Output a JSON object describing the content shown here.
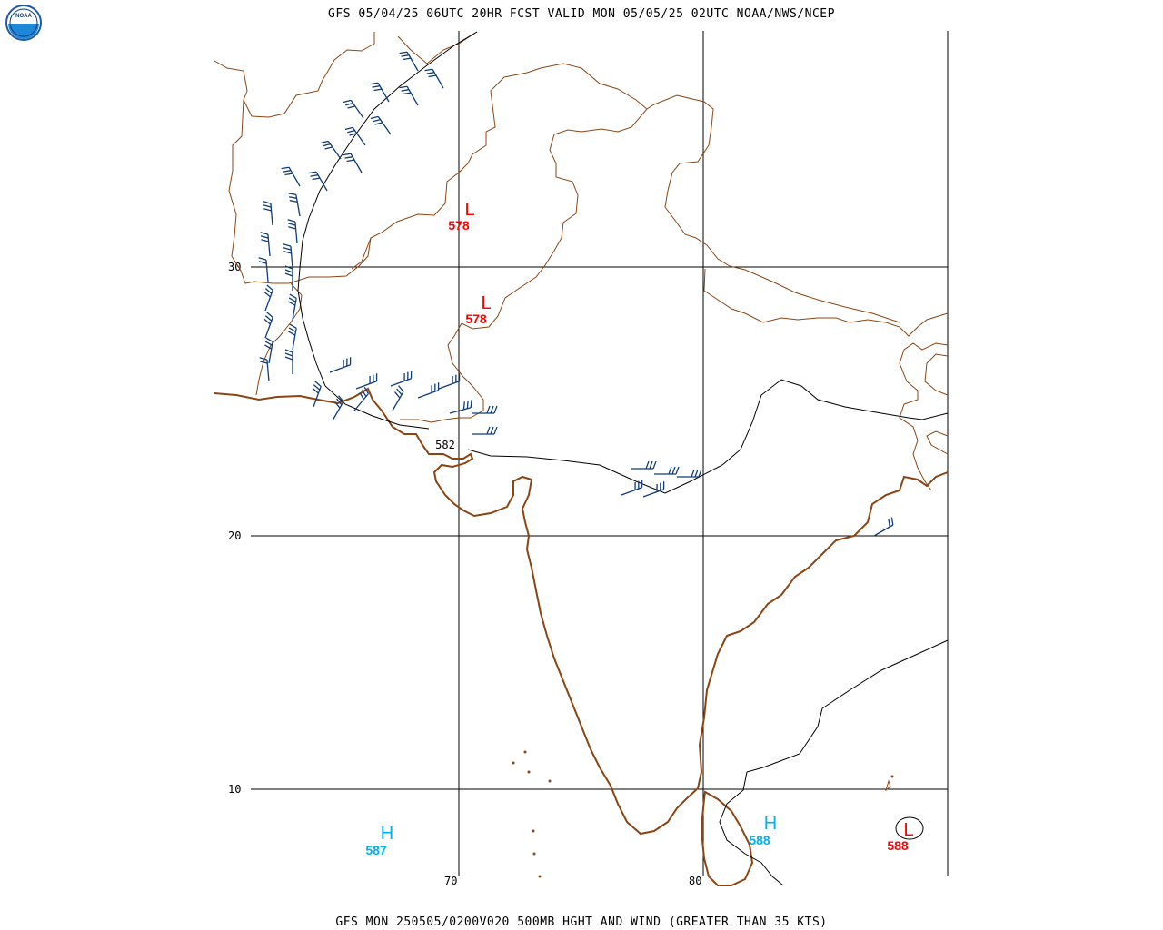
{
  "header": {
    "title": "GFS 05/04/25 06UTC 20HR FCST VALID MON 05/05/25 02UTC NOAA/NWS/NCEP"
  },
  "footer": {
    "caption": "GFS MON 250505/0200V020 500MB HGHT AND WIND (GREATER THAN 35 KTS)"
  },
  "logo": {
    "text": "NOAA",
    "icon": "noaa-logo-icon"
  },
  "grid": {
    "lat_labels": [
      "30",
      "20",
      "10"
    ],
    "lon_labels": [
      "70",
      "80"
    ]
  },
  "pressure_centers": [
    {
      "type": "L",
      "value": "578",
      "color": "#ff0000"
    },
    {
      "type": "L",
      "value": "578",
      "color": "#ff0000"
    },
    {
      "type": "H",
      "value": "587",
      "color": "#00b0f0"
    },
    {
      "type": "H",
      "value": "588",
      "color": "#00b0f0"
    },
    {
      "type": "L",
      "value": "588",
      "color": "#ff0000"
    }
  ],
  "contour_labels": [
    {
      "value": "582"
    }
  ],
  "colors": {
    "coastline": "#8b4513",
    "borders": "#8b4513",
    "wind_barbs": "#0f3c78",
    "grid": "#000000",
    "contours": "#000000",
    "low": "#ff0000",
    "high": "#00b0f0"
  }
}
